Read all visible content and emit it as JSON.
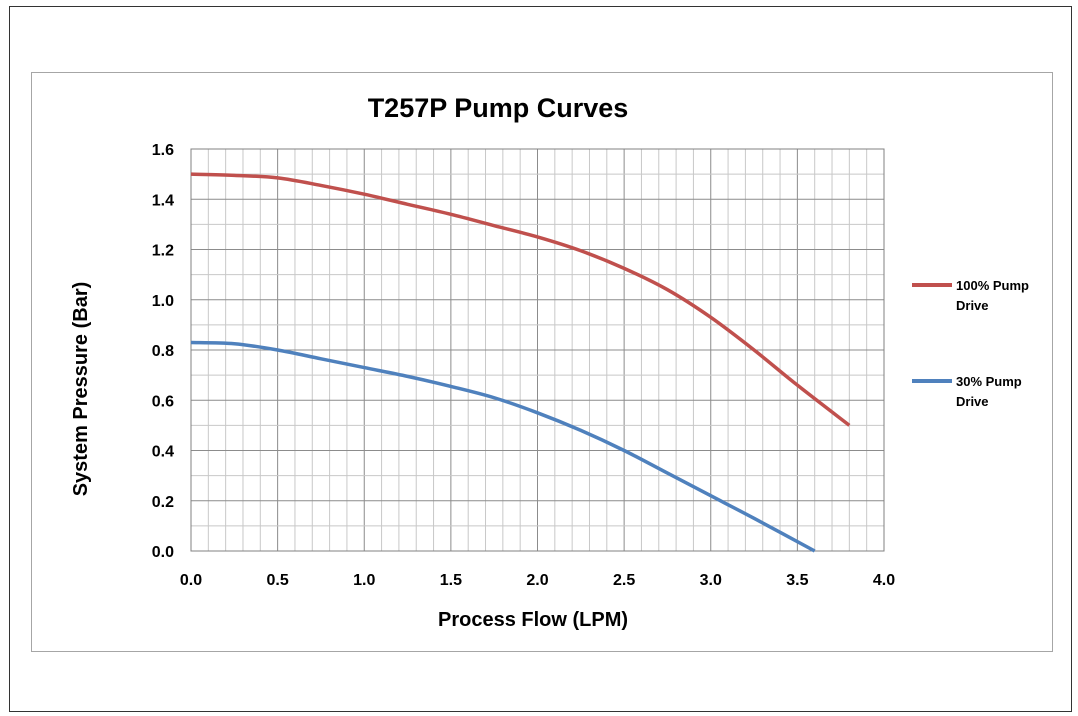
{
  "chart_data": {
    "type": "line",
    "title": "T257P Pump Curves",
    "xlabel": "Process Flow (LPM)",
    "ylabel": "System Pressure (Bar)",
    "xlim": [
      0,
      4
    ],
    "ylim": [
      0,
      1.6
    ],
    "x_ticks": [
      "0.0",
      "0.5",
      "1.0",
      "1.5",
      "2.0",
      "2.5",
      "3.0",
      "3.5",
      "4.0"
    ],
    "y_ticks": [
      "0.0",
      "0.2",
      "0.4",
      "0.6",
      "0.8",
      "1.0",
      "1.2",
      "1.4",
      "1.6"
    ],
    "x_tick_values": [
      0,
      0.5,
      1,
      1.5,
      2,
      2.5,
      3,
      3.5,
      4
    ],
    "y_tick_values": [
      0,
      0.2,
      0.4,
      0.6,
      0.8,
      1,
      1.2,
      1.4,
      1.6
    ],
    "grid": true,
    "minor_gridlines_per_major_x": 5,
    "minor_gridlines_per_major_y": 2,
    "legend_position": "right",
    "series": [
      {
        "name": "100% Pump Drive",
        "legend_lines": [
          "100% Pump",
          "Drive"
        ],
        "color": "#c0504d",
        "x": [
          0.0,
          0.25,
          0.5,
          0.75,
          1.0,
          1.25,
          1.5,
          1.75,
          2.0,
          2.25,
          2.5,
          2.75,
          3.0,
          3.25,
          3.5,
          3.8
        ],
        "y": [
          1.5,
          1.495,
          1.485,
          1.455,
          1.42,
          1.38,
          1.34,
          1.295,
          1.25,
          1.195,
          1.125,
          1.04,
          0.93,
          0.8,
          0.66,
          0.5
        ]
      },
      {
        "name": "30% Pump Drive",
        "legend_lines": [
          "30% Pump",
          "Drive"
        ],
        "color": "#4f81bd",
        "x": [
          0.0,
          0.25,
          0.5,
          0.75,
          1.0,
          1.25,
          1.5,
          1.75,
          2.0,
          2.25,
          2.5,
          2.75,
          3.0,
          3.25,
          3.6
        ],
        "y": [
          0.83,
          0.825,
          0.8,
          0.765,
          0.73,
          0.695,
          0.655,
          0.61,
          0.55,
          0.48,
          0.4,
          0.31,
          0.22,
          0.13,
          0.0
        ]
      }
    ]
  }
}
